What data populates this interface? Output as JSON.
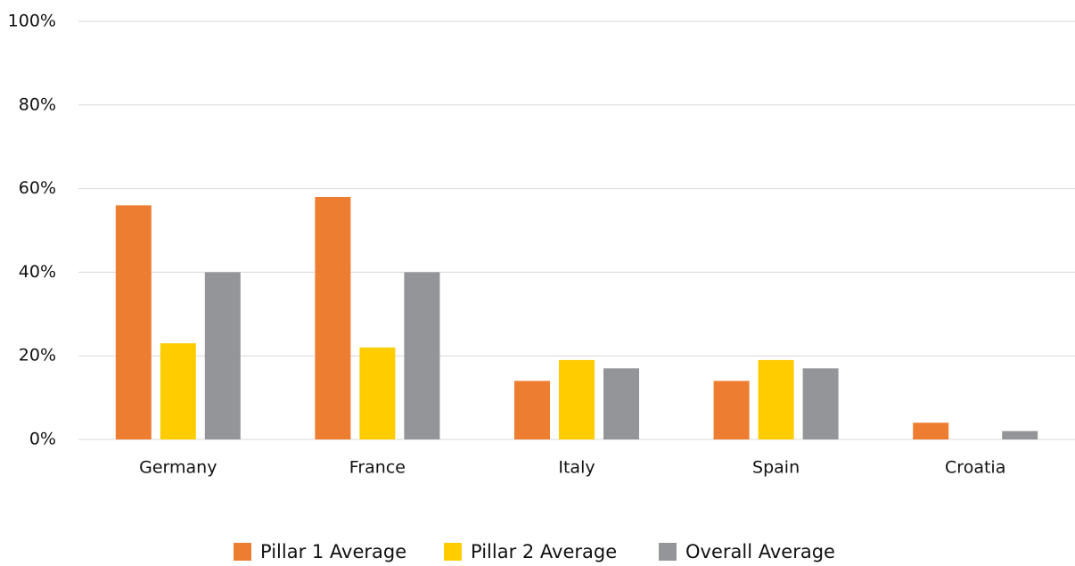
{
  "chart_data": {
    "type": "bar",
    "categories": [
      "Germany",
      "France",
      "Italy",
      "Spain",
      "Croatia"
    ],
    "series": [
      {
        "name": "Pillar 1 Average",
        "color": "#ed7d31",
        "values": [
          56,
          58,
          14,
          14,
          4
        ]
      },
      {
        "name": "Pillar 2 Average",
        "color": "#ffcc00",
        "values": [
          23,
          22,
          19,
          19,
          0
        ]
      },
      {
        "name": "Overall Average",
        "color": "#939598",
        "values": [
          40,
          40,
          17,
          17,
          2
        ]
      }
    ],
    "ylim": [
      0,
      100
    ],
    "yticks": [
      {
        "value": 0,
        "label": "0%"
      },
      {
        "value": 20,
        "label": "20%"
      },
      {
        "value": 40,
        "label": "40%"
      },
      {
        "value": 60,
        "label": "60%"
      },
      {
        "value": 80,
        "label": "80%"
      },
      {
        "value": 100,
        "label": "100%"
      }
    ],
    "grid": true,
    "legend": "bottom"
  }
}
